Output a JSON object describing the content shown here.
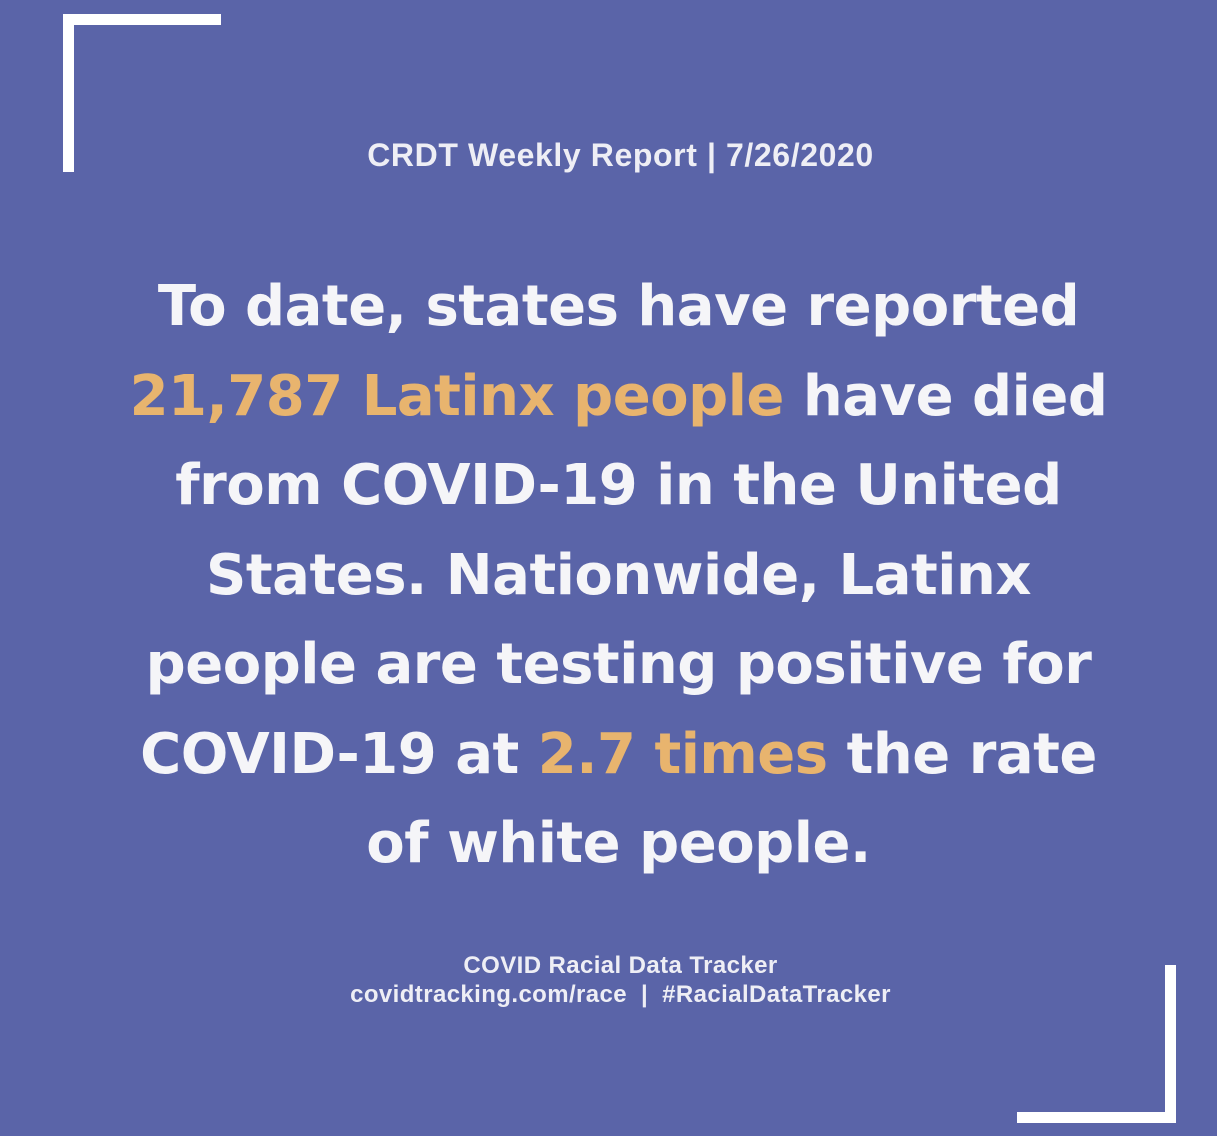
{
  "header": {
    "report_title": "CRDT Weekly Report | 7/26/2020"
  },
  "statement": {
    "line1": "To date, states have reported",
    "line2_highlight": "21,787 Latinx people",
    "line2_rest": " have died",
    "line3": "from COVID-19 in the United",
    "line4": "States. Nationwide, Latinx",
    "line5": "people are testing positive for",
    "line6_start": "COVID-19 at ",
    "line6_highlight": "2.7 times",
    "line6_end": " the rate",
    "line7": "of white people."
  },
  "footer": {
    "org_name": "COVID Racial Data Tracker",
    "url": "covidtracking.com/race",
    "separator": "|",
    "hashtag": "#RacialDataTracker"
  },
  "colors": {
    "background": "#5a64a8",
    "highlight": "#e8b46e",
    "text": "#f5f5f8"
  }
}
